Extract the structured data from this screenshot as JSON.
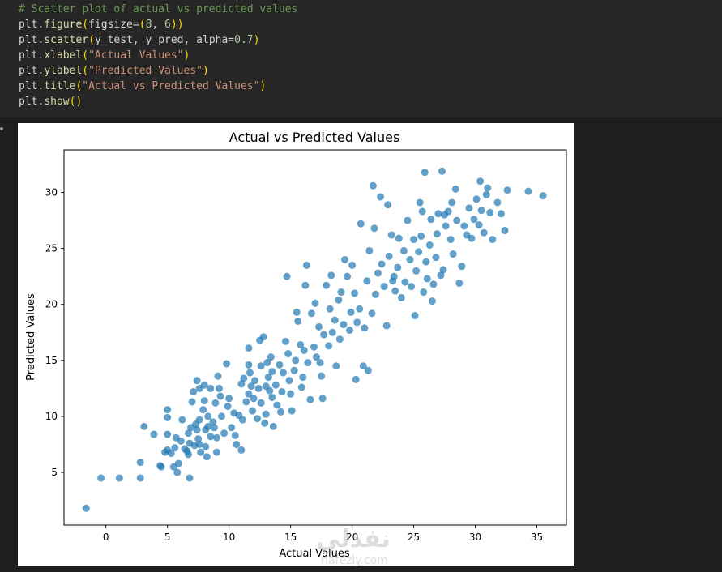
{
  "code_lines": [
    {
      "parts": [
        {
          "t": "# Scatter plot of actual vs predicted values",
          "c": "cmt"
        }
      ]
    },
    {
      "parts": [
        {
          "t": "plt.",
          "c": ""
        },
        {
          "t": "figure",
          "c": "fn"
        },
        {
          "t": "(",
          "c": "par"
        },
        {
          "t": "figsize=",
          "c": ""
        },
        {
          "t": "(",
          "c": "par"
        },
        {
          "t": "8",
          "c": "num"
        },
        {
          "t": ", ",
          "c": ""
        },
        {
          "t": "6",
          "c": "num"
        },
        {
          "t": ")",
          "c": "par"
        },
        {
          "t": ")",
          "c": "par"
        }
      ]
    },
    {
      "parts": [
        {
          "t": "plt.",
          "c": ""
        },
        {
          "t": "scatter",
          "c": "fn"
        },
        {
          "t": "(",
          "c": "par"
        },
        {
          "t": "y_test, y_pred, alpha=",
          "c": ""
        },
        {
          "t": "0.7",
          "c": "num"
        },
        {
          "t": ")",
          "c": "par"
        }
      ]
    },
    {
      "parts": [
        {
          "t": "plt.",
          "c": ""
        },
        {
          "t": "xlabel",
          "c": "fn"
        },
        {
          "t": "(",
          "c": "par"
        },
        {
          "t": "\"Actual Values\"",
          "c": "str"
        },
        {
          "t": ")",
          "c": "par"
        }
      ]
    },
    {
      "parts": [
        {
          "t": "plt.",
          "c": ""
        },
        {
          "t": "ylabel",
          "c": "fn"
        },
        {
          "t": "(",
          "c": "par"
        },
        {
          "t": "\"Predicted Values\"",
          "c": "str"
        },
        {
          "t": ")",
          "c": "par"
        }
      ]
    },
    {
      "parts": [
        {
          "t": "plt.",
          "c": ""
        },
        {
          "t": "title",
          "c": "fn"
        },
        {
          "t": "(",
          "c": "par"
        },
        {
          "t": "\"Actual vs Predicted Values\"",
          "c": "str"
        },
        {
          "t": ")",
          "c": "par"
        }
      ]
    },
    {
      "parts": [
        {
          "t": "plt.",
          "c": ""
        },
        {
          "t": "show",
          "c": "fn"
        },
        {
          "t": "()",
          "c": "par"
        }
      ]
    }
  ],
  "colors": {
    "point": "#1f77b4",
    "cell_bg": "#262626",
    "page_bg": "#1e1e1e"
  },
  "watermark": {
    "arabic": "نفذلي",
    "latin": "nafezly.com"
  },
  "chart_data": {
    "type": "scatter",
    "title": "Actual vs Predicted Values",
    "xlabel": "Actual Values",
    "ylabel": "Predicted Values",
    "xlim": [
      -3.4,
      37.4
    ],
    "ylim": [
      0.3,
      33.8
    ],
    "xticks": [
      0,
      5,
      10,
      15,
      20,
      25,
      30,
      35
    ],
    "yticks": [
      5,
      10,
      15,
      20,
      25,
      30
    ],
    "alpha": 0.7,
    "points": [
      [
        -1.6,
        1.8
      ],
      [
        -0.4,
        4.5
      ],
      [
        1.1,
        4.5
      ],
      [
        2.8,
        4.5
      ],
      [
        2.8,
        5.9
      ],
      [
        3.1,
        9.1
      ],
      [
        3.9,
        8.4
      ],
      [
        4.4,
        5.6
      ],
      [
        4.5,
        5.5
      ],
      [
        4.8,
        6.8
      ],
      [
        5.0,
        10.6
      ],
      [
        5.0,
        9.9
      ],
      [
        5.0,
        8.4
      ],
      [
        5.0,
        7.0
      ],
      [
        5.3,
        6.7
      ],
      [
        5.5,
        5.5
      ],
      [
        5.6,
        7.2
      ],
      [
        5.7,
        8.1
      ],
      [
        5.8,
        5.0
      ],
      [
        5.9,
        5.8
      ],
      [
        6.1,
        7.8
      ],
      [
        6.2,
        9.7
      ],
      [
        6.4,
        7.1
      ],
      [
        6.6,
        6.9
      ],
      [
        6.7,
        6.6
      ],
      [
        6.7,
        8.5
      ],
      [
        6.8,
        4.5
      ],
      [
        6.8,
        7.6
      ],
      [
        6.9,
        9.0
      ],
      [
        7.0,
        11.3
      ],
      [
        7.1,
        12.2
      ],
      [
        7.2,
        7.4
      ],
      [
        7.3,
        9.3
      ],
      [
        7.4,
        8.8
      ],
      [
        7.4,
        13.2
      ],
      [
        7.5,
        8.0
      ],
      [
        7.6,
        7.5
      ],
      [
        7.6,
        12.5
      ],
      [
        7.6,
        9.7
      ],
      [
        7.7,
        6.8
      ],
      [
        7.9,
        10.6
      ],
      [
        8.0,
        12.8
      ],
      [
        8.0,
        11.4
      ],
      [
        8.1,
        8.8
      ],
      [
        8.1,
        7.3
      ],
      [
        8.2,
        6.4
      ],
      [
        8.3,
        9.1
      ],
      [
        8.3,
        10.0
      ],
      [
        8.5,
        8.2
      ],
      [
        8.5,
        12.5
      ],
      [
        8.7,
        9.5
      ],
      [
        8.8,
        9.0
      ],
      [
        8.9,
        11.2
      ],
      [
        9.0,
        8.1
      ],
      [
        9.0,
        6.8
      ],
      [
        9.1,
        13.6
      ],
      [
        9.2,
        12.5
      ],
      [
        9.3,
        11.8
      ],
      [
        9.4,
        10.0
      ],
      [
        9.6,
        8.5
      ],
      [
        9.8,
        14.7
      ],
      [
        9.9,
        10.9
      ],
      [
        10.0,
        11.6
      ],
      [
        10.2,
        9.0
      ],
      [
        10.4,
        10.3
      ],
      [
        10.5,
        8.3
      ],
      [
        10.6,
        7.5
      ],
      [
        10.8,
        10.1
      ],
      [
        11.0,
        7.0
      ],
      [
        11.0,
        12.9
      ],
      [
        11.1,
        9.7
      ],
      [
        11.2,
        13.4
      ],
      [
        11.4,
        11.3
      ],
      [
        11.6,
        12.0
      ],
      [
        11.6,
        14.6
      ],
      [
        11.6,
        16.1
      ],
      [
        11.7,
        13.9
      ],
      [
        11.8,
        12.7
      ],
      [
        11.9,
        10.5
      ],
      [
        12.0,
        11.6
      ],
      [
        12.1,
        13.2
      ],
      [
        12.3,
        9.8
      ],
      [
        12.4,
        12.5
      ],
      [
        12.5,
        16.8
      ],
      [
        12.6,
        14.5
      ],
      [
        12.6,
        11.2
      ],
      [
        12.8,
        17.1
      ],
      [
        12.9,
        9.4
      ],
      [
        13.0,
        10.2
      ],
      [
        13.0,
        12.7
      ],
      [
        13.1,
        14.8
      ],
      [
        13.2,
        13.5
      ],
      [
        13.3,
        12.3
      ],
      [
        13.4,
        15.3
      ],
      [
        13.5,
        11.7
      ],
      [
        13.5,
        14.0
      ],
      [
        13.6,
        9.1
      ],
      [
        13.8,
        12.8
      ],
      [
        13.9,
        11.0
      ],
      [
        14.1,
        14.6
      ],
      [
        14.2,
        10.4
      ],
      [
        14.3,
        12.2
      ],
      [
        14.4,
        13.9
      ],
      [
        14.6,
        16.7
      ],
      [
        14.7,
        22.5
      ],
      [
        14.8,
        15.6
      ],
      [
        14.9,
        13.2
      ],
      [
        15.0,
        12.0
      ],
      [
        15.1,
        10.5
      ],
      [
        15.3,
        14.1
      ],
      [
        15.4,
        15.0
      ],
      [
        15.5,
        19.3
      ],
      [
        15.6,
        18.5
      ],
      [
        15.8,
        16.4
      ],
      [
        15.9,
        12.6
      ],
      [
        16.0,
        13.5
      ],
      [
        16.1,
        15.9
      ],
      [
        16.2,
        21.7
      ],
      [
        16.3,
        23.5
      ],
      [
        16.4,
        14.8
      ],
      [
        16.6,
        11.5
      ],
      [
        16.7,
        19.2
      ],
      [
        16.9,
        16.2
      ],
      [
        17.0,
        20.1
      ],
      [
        17.1,
        15.3
      ],
      [
        17.3,
        18.0
      ],
      [
        17.4,
        14.8
      ],
      [
        17.5,
        13.6
      ],
      [
        17.6,
        11.6
      ],
      [
        17.7,
        17.3
      ],
      [
        17.9,
        21.7
      ],
      [
        18.1,
        16.3
      ],
      [
        18.2,
        19.6
      ],
      [
        18.3,
        22.6
      ],
      [
        18.4,
        17.5
      ],
      [
        18.6,
        18.6
      ],
      [
        18.7,
        14.5
      ],
      [
        18.9,
        20.4
      ],
      [
        19.0,
        16.9
      ],
      [
        19.1,
        21.1
      ],
      [
        19.3,
        18.2
      ],
      [
        19.4,
        24.0
      ],
      [
        19.6,
        22.5
      ],
      [
        19.8,
        17.7
      ],
      [
        19.9,
        19.3
      ],
      [
        20.0,
        23.5
      ],
      [
        20.2,
        21.0
      ],
      [
        20.3,
        13.3
      ],
      [
        20.4,
        18.4
      ],
      [
        20.6,
        19.6
      ],
      [
        20.7,
        27.2
      ],
      [
        20.9,
        14.5
      ],
      [
        21.0,
        17.9
      ],
      [
        21.2,
        22.1
      ],
      [
        21.3,
        14.1
      ],
      [
        21.4,
        24.8
      ],
      [
        21.6,
        19.2
      ],
      [
        21.7,
        30.6
      ],
      [
        21.8,
        26.8
      ],
      [
        21.9,
        20.9
      ],
      [
        22.1,
        22.8
      ],
      [
        22.3,
        29.6
      ],
      [
        22.4,
        23.6
      ],
      [
        22.6,
        21.6
      ],
      [
        22.8,
        18.1
      ],
      [
        22.9,
        28.9
      ],
      [
        23.0,
        24.3
      ],
      [
        23.2,
        26.2
      ],
      [
        23.4,
        22.5
      ],
      [
        23.5,
        21.2
      ],
      [
        23.7,
        23.3
      ],
      [
        23.8,
        25.9
      ],
      [
        24.0,
        20.6
      ],
      [
        24.2,
        24.8
      ],
      [
        24.3,
        22.0
      ],
      [
        24.5,
        27.5
      ],
      [
        24.7,
        24.0
      ],
      [
        24.8,
        21.6
      ],
      [
        25.0,
        25.8
      ],
      [
        25.1,
        19.0
      ],
      [
        25.2,
        23.0
      ],
      [
        25.4,
        24.7
      ],
      [
        25.6,
        26.1
      ],
      [
        25.7,
        28.3
      ],
      [
        25.8,
        21.1
      ],
      [
        25.9,
        31.8
      ],
      [
        26.0,
        23.8
      ],
      [
        26.1,
        22.3
      ],
      [
        26.3,
        25.3
      ],
      [
        26.4,
        27.6
      ],
      [
        26.5,
        20.3
      ],
      [
        26.6,
        21.8
      ],
      [
        26.8,
        24.2
      ],
      [
        26.9,
        26.3
      ],
      [
        27.0,
        28.1
      ],
      [
        27.2,
        22.6
      ],
      [
        27.3,
        31.9
      ],
      [
        27.4,
        23.1
      ],
      [
        27.6,
        27.0
      ],
      [
        27.8,
        28.3
      ],
      [
        28.0,
        25.8
      ],
      [
        28.1,
        29.1
      ],
      [
        28.2,
        24.5
      ],
      [
        28.4,
        30.3
      ],
      [
        28.5,
        27.5
      ],
      [
        28.7,
        21.9
      ],
      [
        28.9,
        23.4
      ],
      [
        29.1,
        27.0
      ],
      [
        29.3,
        26.2
      ],
      [
        29.5,
        28.6
      ],
      [
        29.7,
        25.9
      ],
      [
        29.9,
        27.6
      ],
      [
        30.1,
        29.4
      ],
      [
        30.3,
        27.1
      ],
      [
        30.4,
        31.0
      ],
      [
        30.5,
        28.4
      ],
      [
        30.7,
        26.4
      ],
      [
        30.9,
        29.8
      ],
      [
        31.0,
        30.4
      ],
      [
        31.2,
        28.2
      ],
      [
        31.4,
        25.8
      ],
      [
        31.8,
        29.1
      ],
      [
        32.1,
        28.1
      ],
      [
        32.4,
        26.6
      ],
      [
        32.6,
        30.2
      ],
      [
        34.3,
        30.1
      ],
      [
        35.5,
        29.7
      ],
      [
        25.5,
        29.1
      ],
      [
        27.5,
        28.0
      ],
      [
        23.3,
        22.1
      ]
    ]
  }
}
